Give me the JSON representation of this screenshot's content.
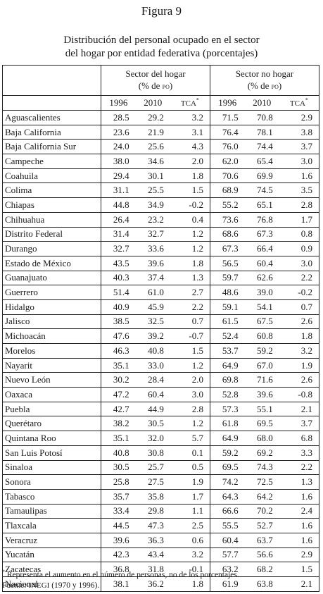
{
  "figure_title": "Figura 9",
  "caption_line1": "Distribución del personal ocupado en el sector",
  "caption_line2": "del hogar por entidad federativa (porcentajes)",
  "group_hogar_line1": "Sector del hogar",
  "group_hogar_line2": "(% de PO)",
  "group_nohogar_line1": "Sector no hogar",
  "group_nohogar_line2": "(% de PO)",
  "col_1996": "1996",
  "col_2010": "2010",
  "col_tca": "TCA",
  "col_tca_mark": "*",
  "rows": [
    [
      "Aguascalientes",
      "28.5",
      "29.2",
      "3.2",
      "71.5",
      "70.8",
      "2.9"
    ],
    [
      "Baja California",
      "23.6",
      "21.9",
      "3.1",
      "76.4",
      "78.1",
      "3.8"
    ],
    [
      "Baja California Sur",
      "24.0",
      "25.6",
      "4.3",
      "76.0",
      "74.4",
      "3.7"
    ],
    [
      "Campeche",
      "38.0",
      "34.6",
      "2.0",
      "62.0",
      "65.4",
      "3.0"
    ],
    [
      "Coahuila",
      "29.4",
      "30.1",
      "1.8",
      "70.6",
      "69.9",
      "1.6"
    ],
    [
      "Colima",
      "31.1",
      "25.5",
      "1.5",
      "68.9",
      "74.5",
      "3.5"
    ],
    [
      "Chiapas",
      "44.8",
      "34.9",
      "-0.2",
      "55.2",
      "65.1",
      "2.8"
    ],
    [
      "Chihuahua",
      "26.4",
      "23.2",
      "0.4",
      "73.6",
      "76.8",
      "1.7"
    ],
    [
      "Distrito Federal",
      "31.4",
      "32.7",
      "1.2",
      "68.6",
      "67.3",
      "0.8"
    ],
    [
      "Durango",
      "32.7",
      "33.6",
      "1.2",
      "67.3",
      "66.4",
      "0.9"
    ],
    [
      "Estado de México",
      "43.5",
      "39.6",
      "1.8",
      "56.5",
      "60.4",
      "3.0"
    ],
    [
      "Guanajuato",
      "40.3",
      "37.4",
      "1.3",
      "59.7",
      "62.6",
      "2.2"
    ],
    [
      "Guerrero",
      "51.4",
      "61.0",
      "2.7",
      "48.6",
      "39.0",
      "-0.2"
    ],
    [
      "Hidalgo",
      "40.9",
      "45.9",
      "2.2",
      "59.1",
      "54.1",
      "0.7"
    ],
    [
      "Jalisco",
      "38.5",
      "32.5",
      "0.7",
      "61.5",
      "67.5",
      "2.6"
    ],
    [
      "Michoacán",
      "47.6",
      "39.2",
      "-0.7",
      "52.4",
      "60.8",
      "1.8"
    ],
    [
      "Morelos",
      "46.3",
      "40.8",
      "1.5",
      "53.7",
      "59.2",
      "3.2"
    ],
    [
      "Nayarit",
      "35.1",
      "33.0",
      "1.2",
      "64.9",
      "67.0",
      "1.9"
    ],
    [
      "Nuevo León",
      "30.2",
      "28.4",
      "2.0",
      "69.8",
      "71.6",
      "2.6"
    ],
    [
      "Oaxaca",
      "47.2",
      "60.4",
      "3.0",
      "52.8",
      "39.6",
      "-0.8"
    ],
    [
      "Puebla",
      "42.7",
      "44.9",
      "2.8",
      "57.3",
      "55.1",
      "2.1"
    ],
    [
      "Querétaro",
      "38.2",
      "30.5",
      "1.2",
      "61.8",
      "69.5",
      "3.7"
    ],
    [
      "Quintana Roo",
      "35.1",
      "32.0",
      "5.7",
      "64.9",
      "68.0",
      "6.8"
    ],
    [
      "San Luis Potosí",
      "40.8",
      "30.8",
      "0.1",
      "59.2",
      "69.2",
      "3.3"
    ],
    [
      "Sinaloa",
      "30.5",
      "25.7",
      "0.5",
      "69.5",
      "74.3",
      "2.2"
    ],
    [
      "Sonora",
      "25.8",
      "27.5",
      "1.9",
      "74.2",
      "72.5",
      "1.3"
    ],
    [
      "Tabasco",
      "35.7",
      "35.8",
      "1.7",
      "64.3",
      "64.2",
      "1.6"
    ],
    [
      "Tamaulipas",
      "33.4",
      "29.8",
      "1.1",
      "66.6",
      "70.2",
      "2.4"
    ],
    [
      "Tlaxcala",
      "44.5",
      "47.3",
      "2.5",
      "55.5",
      "52.7",
      "1.6"
    ],
    [
      "Veracruz",
      "39.6",
      "36.3",
      "0.6",
      "60.4",
      "63.7",
      "1.6"
    ],
    [
      "Yucatán",
      "42.3",
      "43.4",
      "3.2",
      "57.7",
      "56.6",
      "2.9"
    ],
    [
      "Zacatecas",
      "36.8",
      "31.8",
      "-0.1",
      "63.2",
      "68.2",
      "1.5"
    ],
    [
      "Nacional",
      "38.1",
      "36.2",
      "1.8",
      "61.9",
      "63.8",
      "2.1"
    ]
  ],
  "footnote_mark": "*",
  "footnote_text": "Representa el aumento en el número de personas, no de los porcentajes.",
  "source_label": "Fuente:",
  "source_org": "INEGI",
  "source_years": "(1970 y 1996)."
}
